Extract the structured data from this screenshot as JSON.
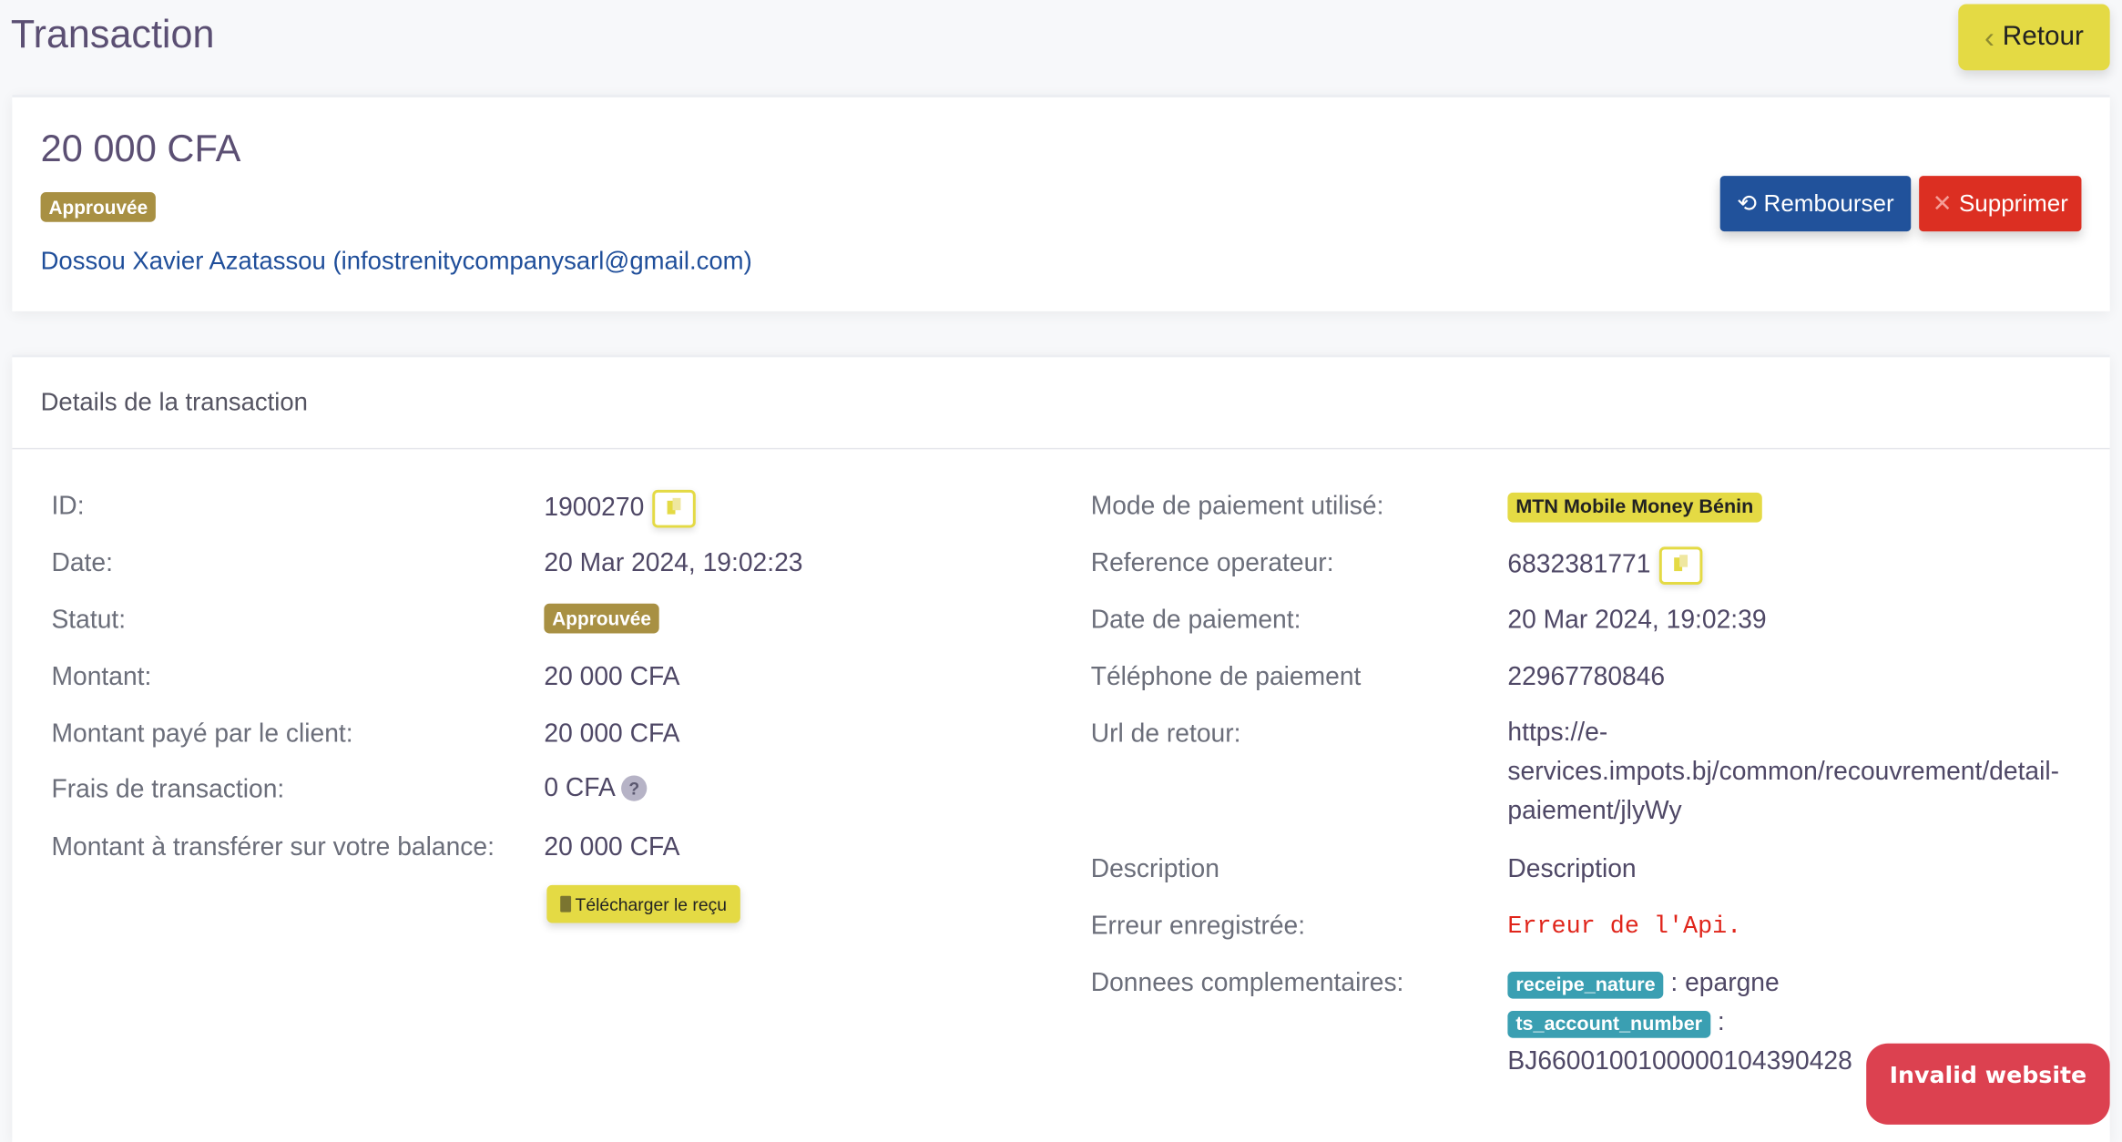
{
  "header": {
    "title": "Transaction",
    "back_label": "Retour",
    "back_icon": "chevron-left-icon"
  },
  "summary": {
    "amount": "20 000 CFA",
    "status": "Approuvée",
    "customer": "Dossou Xavier Azatassou (infostrenitycompanysarl@gmail.com)",
    "refund_label": "Rembourser",
    "delete_label": "Supprimer"
  },
  "details": {
    "title": "Details de la transaction",
    "left": [
      {
        "label": "ID:",
        "value": "1900270"
      },
      {
        "label": "Date:",
        "value": "20 Mar 2024, 19:02:23"
      },
      {
        "label": "Statut:",
        "value": "Approuvée"
      },
      {
        "label": "Montant:",
        "value": "20 000 CFA"
      },
      {
        "label": "Montant payé par le client:",
        "value": "20 000 CFA"
      },
      {
        "label": "Frais de transaction:",
        "value": "0 CFA"
      },
      {
        "label": "Montant à transférer sur votre balance:",
        "value": "20 000 CFA"
      }
    ],
    "fee_help": "?",
    "download_label": "Télécharger le reçu",
    "right": [
      {
        "label": "Mode de paiement utilisé:",
        "value": "MTN Mobile Money Bénin"
      },
      {
        "label": "Reference operateur:",
        "value": "6832381771"
      },
      {
        "label": "Date de paiement:",
        "value": "20 Mar 2024, 19:02:39"
      },
      {
        "label": "Téléphone de paiement",
        "value": "22967780846"
      },
      {
        "label": "Url de retour:",
        "value_lines": [
          "https://e-",
          "services.impots.bj/common/recouvrement/detail-",
          "paiement/jlyWy"
        ]
      },
      {
        "label": "Description",
        "value": "Description"
      },
      {
        "label": "Erreur enregistrée:",
        "value": "Erreur de l'Api."
      },
      {
        "label": "Donnees complementaires:",
        "extra": [
          {
            "key": "receipe_nature",
            "value": ": epargne"
          },
          {
            "key": "ts_account_number",
            "value": ":",
            "value_cont": "BJ6600100100000104390428"
          }
        ]
      }
    ]
  },
  "widget": {
    "invalid_label": "Invalid website"
  },
  "colors": {
    "accent": "#e4da44",
    "primary": "#21529b",
    "danger": "#dc2f22",
    "approved": "#a89043",
    "info": "#3a9fb2"
  }
}
